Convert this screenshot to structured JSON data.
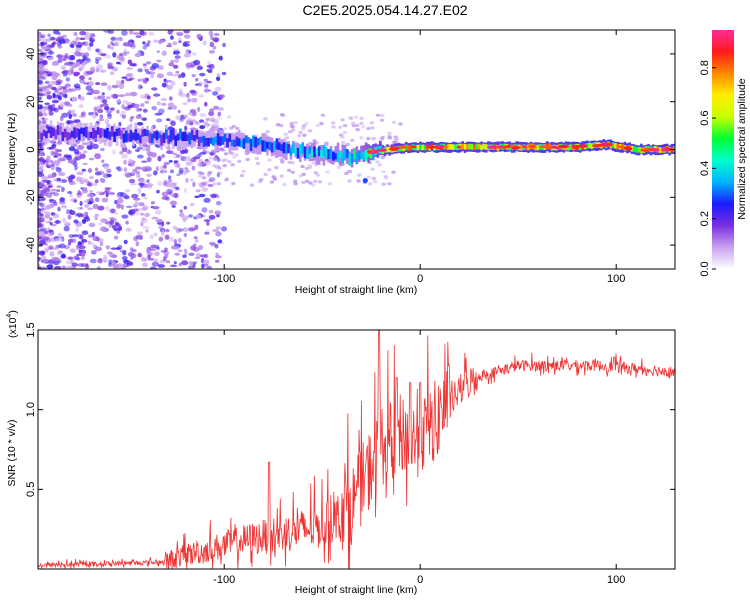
{
  "title": "C2E5.2025.054.14.27.E02",
  "chart_data": [
    {
      "type": "heatmap",
      "xlabel": "Height of straight line (km)",
      "ylabel": "Frequency (Hz)",
      "xlim": [
        -195,
        130
      ],
      "ylim": [
        -50,
        50
      ],
      "x_ticks": [
        -100,
        0,
        100
      ],
      "x_tick_labels": [
        "-100",
        "0",
        "100"
      ],
      "y_ticks": [
        -40,
        -20,
        0,
        20,
        40
      ],
      "y_tick_labels": [
        "-40",
        "-20",
        "0",
        "20",
        "40"
      ],
      "colorbar": {
        "label": "Normalized spectral amplitude",
        "range": [
          0,
          0.95
        ],
        "ticks": [
          0.0,
          0.2,
          0.4,
          0.6,
          0.8
        ],
        "tick_labels": [
          "0.0",
          "0.2",
          "0.4",
          "0.6",
          "0.8"
        ],
        "colors": [
          "#ffffff",
          "#c9a0f0",
          "#7b2fe0",
          "#1a1aff",
          "#00b4ff",
          "#00ffcc",
          "#00ff33",
          "#c8ff00",
          "#ffee00",
          "#ff8800",
          "#ff1a1a",
          "#ff2d9a"
        ]
      },
      "ridge": [
        {
          "x": -190,
          "f": 7,
          "amp": 0.25
        },
        {
          "x": -150,
          "f": 6,
          "amp": 0.28
        },
        {
          "x": -120,
          "f": 5,
          "amp": 0.32
        },
        {
          "x": -100,
          "f": 4,
          "amp": 0.34
        },
        {
          "x": -80,
          "f": 2,
          "amp": 0.38
        },
        {
          "x": -60,
          "f": -1,
          "amp": 0.42
        },
        {
          "x": -45,
          "f": -2,
          "amp": 0.46
        },
        {
          "x": -35,
          "f": -3,
          "amp": 0.5
        },
        {
          "x": -25,
          "f": -1,
          "amp": 0.62
        },
        {
          "x": -15,
          "f": 0,
          "amp": 0.8
        },
        {
          "x": -5,
          "f": 1,
          "amp": 0.84
        },
        {
          "x": 10,
          "f": 1,
          "amp": 0.86
        },
        {
          "x": 40,
          "f": 1,
          "amp": 0.82
        },
        {
          "x": 80,
          "f": 1,
          "amp": 0.86
        },
        {
          "x": 95,
          "f": 2,
          "amp": 0.9
        },
        {
          "x": 110,
          "f": 0,
          "amp": 0.82
        },
        {
          "x": 130,
          "f": 0,
          "amp": 0.86
        }
      ]
    },
    {
      "type": "line",
      "series_color": "#ee3333",
      "xlabel": "Height of straight line (km)",
      "ylabel": "SNR (10 * v/v)",
      "y_multiplier": "(x10",
      "y_exponent": "4",
      "xlim": [
        -195,
        130
      ],
      "ylim": [
        0,
        1.5
      ],
      "x_ticks": [
        -100,
        0,
        100
      ],
      "x_tick_labels": [
        "-100",
        "0",
        "100"
      ],
      "y_ticks": [
        0.5,
        1.0,
        1.5
      ],
      "y_tick_labels": [
        "0.5",
        "1.0",
        "1.5"
      ],
      "trend": [
        {
          "x": -195,
          "y": 0.02
        },
        {
          "x": -160,
          "y": 0.03
        },
        {
          "x": -130,
          "y": 0.04
        },
        {
          "x": -110,
          "y": 0.1
        },
        {
          "x": -90,
          "y": 0.16
        },
        {
          "x": -70,
          "y": 0.2
        },
        {
          "x": -50,
          "y": 0.24
        },
        {
          "x": -35,
          "y": 0.35
        },
        {
          "x": -25,
          "y": 0.6
        },
        {
          "x": -20,
          "y": 0.72
        },
        {
          "x": -15,
          "y": 0.75
        },
        {
          "x": -10,
          "y": 0.8
        },
        {
          "x": -5,
          "y": 0.75
        },
        {
          "x": 0,
          "y": 0.78
        },
        {
          "x": 10,
          "y": 0.92
        },
        {
          "x": 20,
          "y": 1.1
        },
        {
          "x": 30,
          "y": 1.2
        },
        {
          "x": 50,
          "y": 1.27
        },
        {
          "x": 90,
          "y": 1.27
        },
        {
          "x": 100,
          "y": 1.26
        },
        {
          "x": 130,
          "y": 1.23
        }
      ],
      "peaks": [
        {
          "x": -77,
          "y": 0.67
        },
        {
          "x": -21,
          "y": 1.5
        },
        {
          "x": -12,
          "y": 1.2
        },
        {
          "x": -5,
          "y": 1.17
        },
        {
          "x": 0,
          "y": 1.17
        },
        {
          "x": 99,
          "y": 1.33
        }
      ]
    }
  ]
}
